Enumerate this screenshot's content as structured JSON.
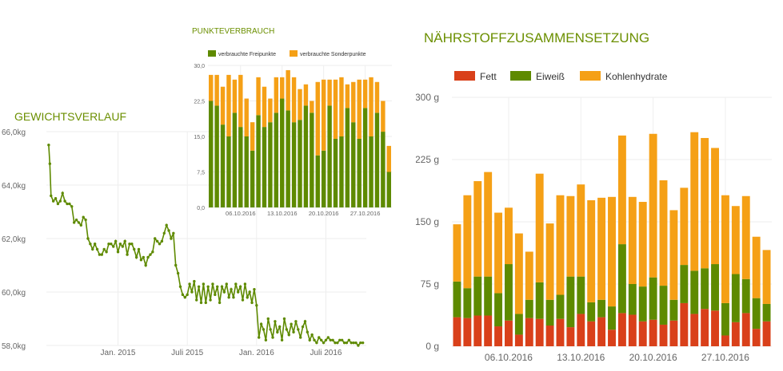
{
  "colors": {
    "title": "#6b8f00",
    "green": "#5e8a00",
    "orange": "#f5a016",
    "red": "#d9401a",
    "axis_text": "#666666",
    "grid": "#eeeeee"
  },
  "titles": {
    "weight": "GEWICHTSVERLAUF",
    "points": "PUNKTEVERBRAUCH",
    "nutrients": "NÄHRSTOFFZUSAMMENSETZUNG"
  },
  "chart_data": [
    {
      "type": "line",
      "title": "GEWICHTSVERLAUF",
      "ylim": [
        58,
        66
      ],
      "y_ticks": [
        "58,0kg",
        "60,0kg",
        "62,0kg",
        "64,0kg",
        "66,0kg"
      ],
      "x_ticks": [
        {
          "label": "Jan. 2015",
          "t": 3
        },
        {
          "label": "Juli 2015",
          "t": 9
        },
        {
          "label": "Jan. 2016",
          "t": 15
        },
        {
          "label": "Juli 2016",
          "t": 21
        }
      ],
      "xlim": [
        -3.2,
        24.5
      ],
      "series": [
        {
          "t": [
            -3.0,
            -2.9,
            -2.8,
            -2.6,
            -2.4,
            -2.2,
            -2.0,
            -1.8,
            -1.6,
            -1.4,
            -1.2,
            -1.0,
            -0.8,
            -0.6,
            -0.4,
            -0.2,
            0.0,
            0.2,
            0.4,
            0.6,
            0.8,
            1.0,
            1.2,
            1.4,
            1.6,
            1.8,
            2.0,
            2.2,
            2.4,
            2.6,
            2.8,
            3.0,
            3.2,
            3.4,
            3.6,
            3.8,
            4.0,
            4.2,
            4.4,
            4.6,
            4.8,
            5.0,
            5.2,
            5.4,
            5.6,
            5.8,
            6.0,
            6.2,
            6.4,
            6.6,
            6.8,
            7.0,
            7.2,
            7.4,
            7.6,
            7.8,
            8.0,
            8.2,
            8.4,
            8.6,
            8.8,
            9.0,
            9.2,
            9.4,
            9.6,
            9.8,
            10.0,
            10.2,
            10.4,
            10.6,
            10.8,
            11.0,
            11.2,
            11.4,
            11.6,
            11.8,
            12.0,
            12.2,
            12.4,
            12.6,
            12.8,
            13.0,
            13.2,
            13.4,
            13.6,
            13.8,
            14.0,
            14.2,
            14.4,
            14.6,
            14.8,
            15.0,
            15.2,
            15.4,
            15.6,
            15.8,
            16.0,
            16.2,
            16.4,
            16.6,
            16.8,
            17.0,
            17.2,
            17.4,
            17.6,
            17.8,
            18.0,
            18.2,
            18.4,
            18.6,
            18.8,
            19.0,
            19.2,
            19.4,
            19.6,
            19.8,
            20.0,
            20.2,
            20.4,
            20.6,
            20.8,
            21.0,
            21.2,
            21.4,
            21.6,
            21.8,
            22.0,
            22.2,
            22.4,
            22.6,
            22.8,
            23.0,
            23.2,
            23.4,
            23.6,
            23.8,
            24.0,
            24.2
          ],
          "values": [
            65.5,
            64.8,
            63.6,
            63.4,
            63.5,
            63.3,
            63.4,
            63.7,
            63.4,
            63.3,
            63.3,
            63.2,
            62.6,
            62.7,
            62.6,
            62.5,
            62.8,
            62.7,
            62.0,
            61.8,
            61.6,
            61.8,
            61.6,
            61.4,
            61.4,
            61.6,
            61.5,
            61.8,
            61.8,
            61.7,
            61.9,
            61.5,
            61.8,
            61.7,
            61.9,
            61.4,
            61.8,
            61.8,
            61.6,
            61.3,
            61.6,
            61.2,
            61.3,
            61.0,
            61.3,
            61.4,
            61.5,
            62.0,
            61.9,
            61.8,
            61.9,
            62.2,
            62.5,
            62.3,
            62.0,
            62.2,
            61.0,
            60.7,
            60.2,
            59.9,
            59.8,
            59.9,
            60.3,
            60.0,
            60.4,
            59.7,
            60.2,
            59.6,
            60.3,
            59.6,
            60.2,
            59.7,
            60.3,
            59.9,
            60.2,
            59.6,
            60.2,
            60.0,
            60.3,
            59.8,
            60.1,
            59.8,
            60.3,
            60.0,
            60.2,
            59.7,
            60.3,
            59.8,
            60.0,
            59.6,
            60.1,
            59.5,
            58.3,
            58.8,
            58.6,
            58.2,
            59.0,
            58.6,
            58.3,
            58.9,
            58.5,
            58.7,
            58.2,
            59.0,
            58.6,
            58.4,
            58.8,
            58.5,
            58.9,
            58.6,
            58.3,
            58.7,
            58.9,
            58.5,
            58.2,
            58.4,
            58.2,
            58.1,
            58.3,
            58.2,
            58.1,
            58.2,
            58.3,
            58.2,
            58.2,
            58.1,
            58.1,
            58.2,
            58.2,
            58.1,
            58.1,
            58.2,
            58.1,
            58.1,
            58.1,
            58.0,
            58.1,
            58.1
          ]
        }
      ]
    },
    {
      "type": "bar",
      "stacked": true,
      "title": "PUNKTEVERBRAUCH",
      "legend": [
        "verbrauchte Freipunkte",
        "verbrauchte Sonderpunkte"
      ],
      "legend_position": "top",
      "ylim": [
        0,
        30
      ],
      "y_ticks": [
        "0,0",
        "7,5",
        "15,0",
        "22,5",
        "30,0"
      ],
      "x_ticks": [
        {
          "label": "06.10.2016",
          "i": 5
        },
        {
          "label": "13.10.2016",
          "i": 12
        },
        {
          "label": "20.10.2016",
          "i": 19
        },
        {
          "label": "27.10.2016",
          "i": 26
        }
      ],
      "series": [
        {
          "name": "verbrauchte Freipunkte",
          "values": [
            22.5,
            21.5,
            17.5,
            15.0,
            20.0,
            17.0,
            15.0,
            12.0,
            19.5,
            17.0,
            18.0,
            20.0,
            23.0,
            20.5,
            18.0,
            18.5,
            21.5,
            20.0,
            11.0,
            12.0,
            21.5,
            14.5,
            15.0,
            21.0,
            18.0,
            14.5,
            21.0,
            15.0,
            20.0,
            16.0,
            7.5
          ]
        },
        {
          "name": "verbrauchte Sonderpunkte",
          "values": [
            5.5,
            6.5,
            8.0,
            13.0,
            7.0,
            11.0,
            8.0,
            6.0,
            8.0,
            8.5,
            5.0,
            7.5,
            4.5,
            8.5,
            9.5,
            6.5,
            4.5,
            2.5,
            15.5,
            15.0,
            5.5,
            12.5,
            12.5,
            5.0,
            8.5,
            12.5,
            6.0,
            12.5,
            6.5,
            6.5,
            5.5
          ]
        }
      ]
    },
    {
      "type": "bar",
      "stacked": true,
      "title": "NÄHRSTOFFZUSAMMENSETZUNG",
      "legend": [
        "Fett",
        "Eiweiß",
        "Kohlenhydrate"
      ],
      "legend_position": "top",
      "ylim": [
        0,
        300
      ],
      "y_ticks": [
        "0 g",
        "75 g",
        "150 g",
        "225 g",
        "300 g"
      ],
      "x_ticks": [
        {
          "label": "06.10.2016",
          "i": 5
        },
        {
          "label": "13.10.2016",
          "i": 12
        },
        {
          "label": "20.10.2016",
          "i": 19
        },
        {
          "label": "27.10.2016",
          "i": 26
        }
      ],
      "series": [
        {
          "name": "Fett",
          "values": [
            35,
            34,
            37,
            37,
            24,
            31,
            14,
            34,
            33,
            25,
            33,
            23,
            39,
            30,
            35,
            20,
            40,
            38,
            30,
            32,
            26,
            31,
            52,
            39,
            45,
            43,
            13,
            29,
            40,
            21,
            30
          ]
        },
        {
          "name": "Eiweiß",
          "values": [
            43,
            36,
            47,
            47,
            40,
            68,
            25,
            22,
            44,
            31,
            29,
            61,
            45,
            23,
            21,
            28,
            83,
            37,
            42,
            51,
            47,
            25,
            46,
            52,
            49,
            56,
            39,
            58,
            41,
            37,
            21
          ]
        },
        {
          "name": "Kohlenhydrate",
          "values": [
            69,
            112,
            115,
            126,
            97,
            68,
            97,
            58,
            131,
            92,
            120,
            97,
            111,
            123,
            123,
            132,
            131,
            105,
            102,
            173,
            127,
            108,
            93,
            167,
            157,
            140,
            130,
            82,
            100,
            74,
            65
          ]
        }
      ]
    }
  ]
}
